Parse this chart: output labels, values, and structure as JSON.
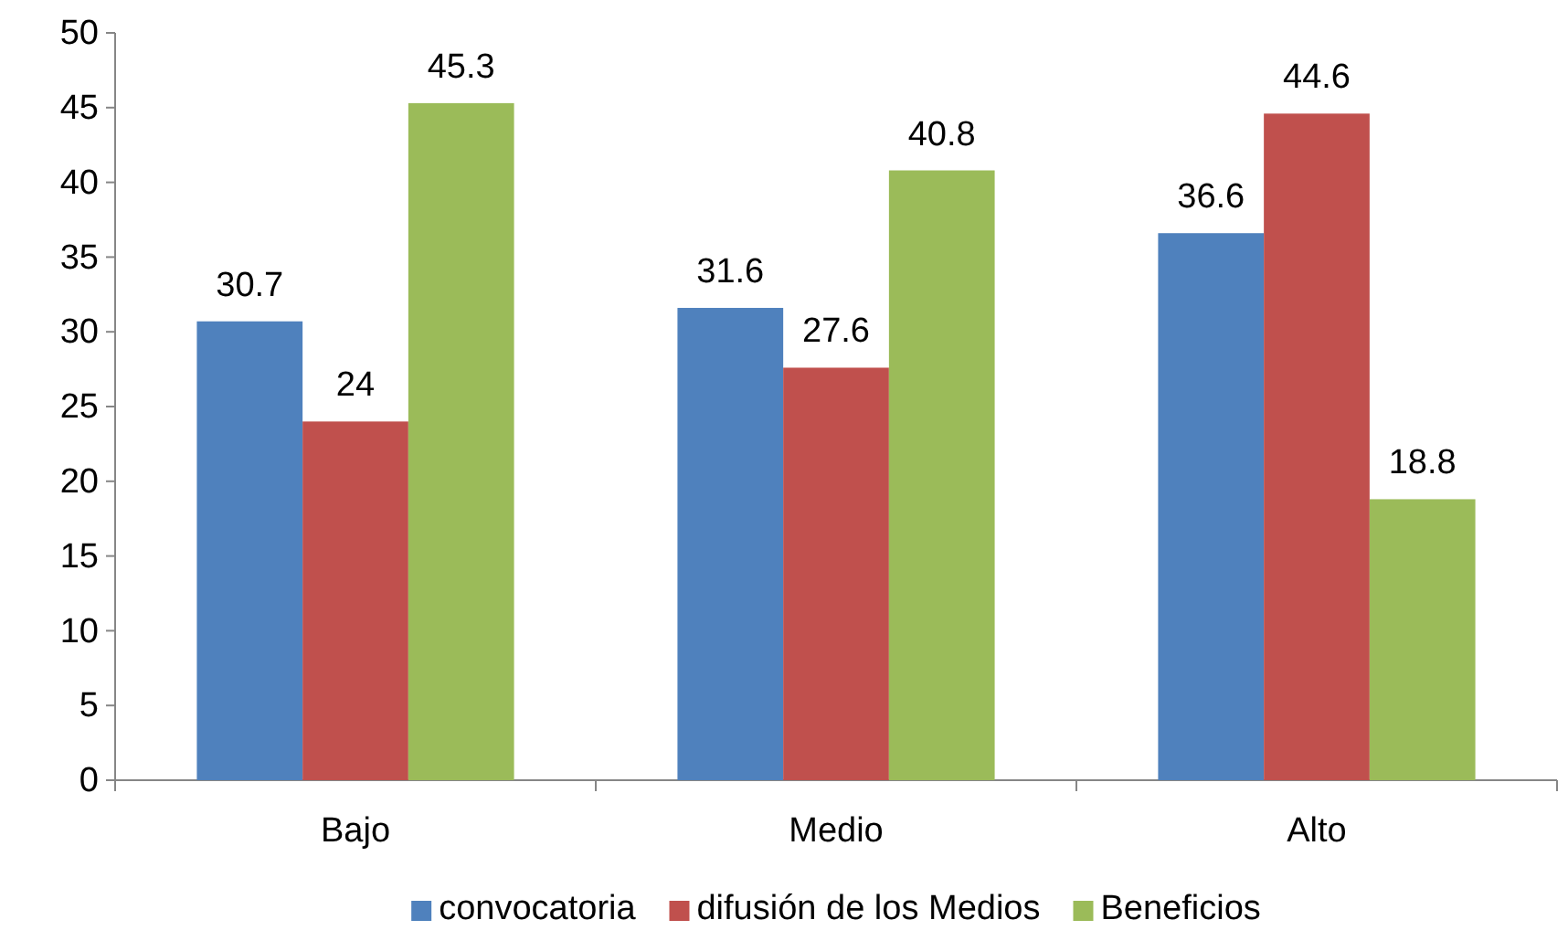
{
  "chart_data": {
    "type": "bar",
    "categories": [
      "Bajo",
      "Medio",
      "Alto"
    ],
    "series": [
      {
        "name": "convocatoria",
        "color": "#4f81bd",
        "values": [
          30.7,
          31.6,
          36.6
        ]
      },
      {
        "name": "difusión de los Medios",
        "color": "#c0504d",
        "values": [
          24,
          27.6,
          44.6
        ]
      },
      {
        "name": "Beneficios",
        "color": "#9bbb59",
        "values": [
          45.3,
          40.8,
          18.8
        ]
      }
    ],
    "ylim": [
      0,
      50
    ],
    "yticks": [
      0,
      5,
      10,
      15,
      20,
      25,
      30,
      35,
      40,
      45,
      50
    ],
    "grid": false,
    "legend": "bottom",
    "data_labels": true
  }
}
